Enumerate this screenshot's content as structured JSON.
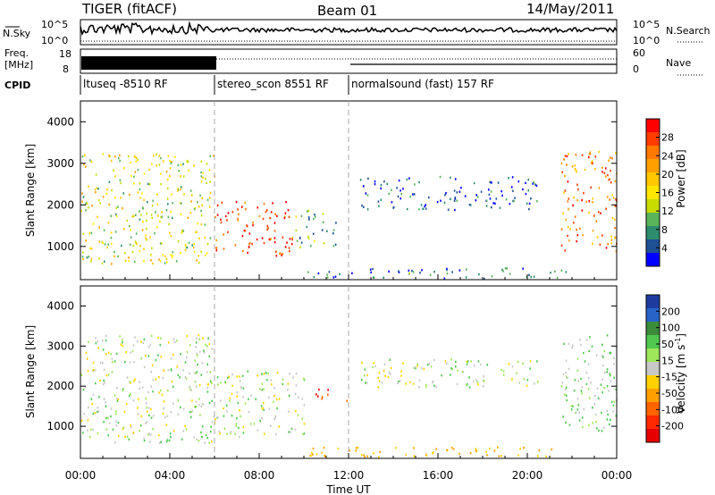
{
  "header": {
    "title": "TIGER (fitACF)",
    "beam": "Beam 01",
    "date": "14/May/2011"
  },
  "strip_labels": {
    "nsky": "N.Sky",
    "nsearch": "N.Search",
    "freq_line1": "Freq.",
    "freq_line2": "[MHz]",
    "nave": "Nave",
    "cpid": "CPID",
    "noise_ticks_left": [
      "10^5",
      "10^0"
    ],
    "noise_ticks_right": [
      "10^5",
      "10^0"
    ],
    "freq_ticks": [
      "18",
      "8"
    ],
    "nave_ticks": [
      "60",
      "0"
    ]
  },
  "cpid_segments": [
    {
      "label": "ltuseq -8510 RF",
      "start_h": 0,
      "end_h": 6
    },
    {
      "label": "stereo_scon 8551 RF",
      "start_h": 6,
      "end_h": 12
    },
    {
      "label": "normalsound (fast) 157 RF",
      "start_h": 12,
      "end_h": 24
    }
  ],
  "axes": {
    "ylabel": "Slant Range [km]",
    "xlabel": "Time UT",
    "x_ticks": [
      "00:00",
      "04:00",
      "08:00",
      "12:00",
      "16:00",
      "20:00",
      "00:00"
    ],
    "y_ticks": [
      "1000",
      "2000",
      "3000",
      "4000"
    ]
  },
  "power_scale": {
    "label": "Power [dB]",
    "ticks": [
      "28",
      "24",
      "20",
      "16",
      "12",
      "8",
      "4"
    ],
    "colors": [
      "#ff0000",
      "#ff3c00",
      "#ff7800",
      "#ffa000",
      "#ffc800",
      "#ffe600",
      "#c8dc00",
      "#5ab45a",
      "#2d8c6e",
      "#1e5096",
      "#0000ff"
    ]
  },
  "velocity_scale": {
    "label": "Velocity [m s",
    "label_sup": "-1",
    "label_close": "]",
    "ticks": [
      "200",
      "100",
      "50",
      "15",
      "-15",
      "-50",
      "-100",
      "-200"
    ],
    "colors": [
      "#1e3ca0",
      "#2864c8",
      "#3c8c3c",
      "#50c850",
      "#9ee65a",
      "#c8c8c8",
      "#ffd200",
      "#ffa000",
      "#ff6400",
      "#ff2800",
      "#e60000"
    ]
  },
  "chart_data": {
    "type": "heatmap",
    "description_x": "time in UT hours (0–24)",
    "description_y": "slant range in km",
    "x_range_hours": [
      0,
      24
    ],
    "y_range_km": [
      200,
      4500
    ],
    "power_regions": [
      {
        "t0": 0,
        "t1": 6,
        "r0": 600,
        "r1": 3300,
        "dominant_db": 16
      },
      {
        "t0": 6,
        "t1": 9.5,
        "r0": 750,
        "r1": 2100,
        "dominant_db": 28
      },
      {
        "t0": 9.6,
        "t1": 11.5,
        "r0": 1000,
        "r1": 1900,
        "dominant_db": 10
      },
      {
        "t0": 12.5,
        "t1": 20.5,
        "r0": 1900,
        "r1": 2700,
        "dominant_db": 6
      },
      {
        "t0": 10,
        "t1": 21.8,
        "r0": 250,
        "r1": 500,
        "dominant_db": 8
      },
      {
        "t0": 21.5,
        "t1": 24,
        "r0": 900,
        "r1": 3300,
        "dominant_db": 24
      }
    ],
    "velocity_regions": [
      {
        "t0": 0,
        "t1": 6,
        "r0": 600,
        "r1": 3300,
        "dominant_vel": 0
      },
      {
        "t0": 6,
        "t1": 10,
        "r0": 750,
        "r1": 2400,
        "dominant_vel": 0
      },
      {
        "t0": 10.5,
        "t1": 12,
        "r0": 1650,
        "r1": 1950,
        "dominant_vel": -200
      },
      {
        "t0": 12.5,
        "t1": 20.5,
        "r0": 2000,
        "r1": 2700,
        "dominant_vel": 0
      },
      {
        "t0": 10,
        "t1": 21.8,
        "r0": 250,
        "r1": 500,
        "dominant_vel": -50
      },
      {
        "t0": 21.5,
        "t1": 24,
        "r0": 900,
        "r1": 3300,
        "dominant_vel": 15
      }
    ]
  }
}
